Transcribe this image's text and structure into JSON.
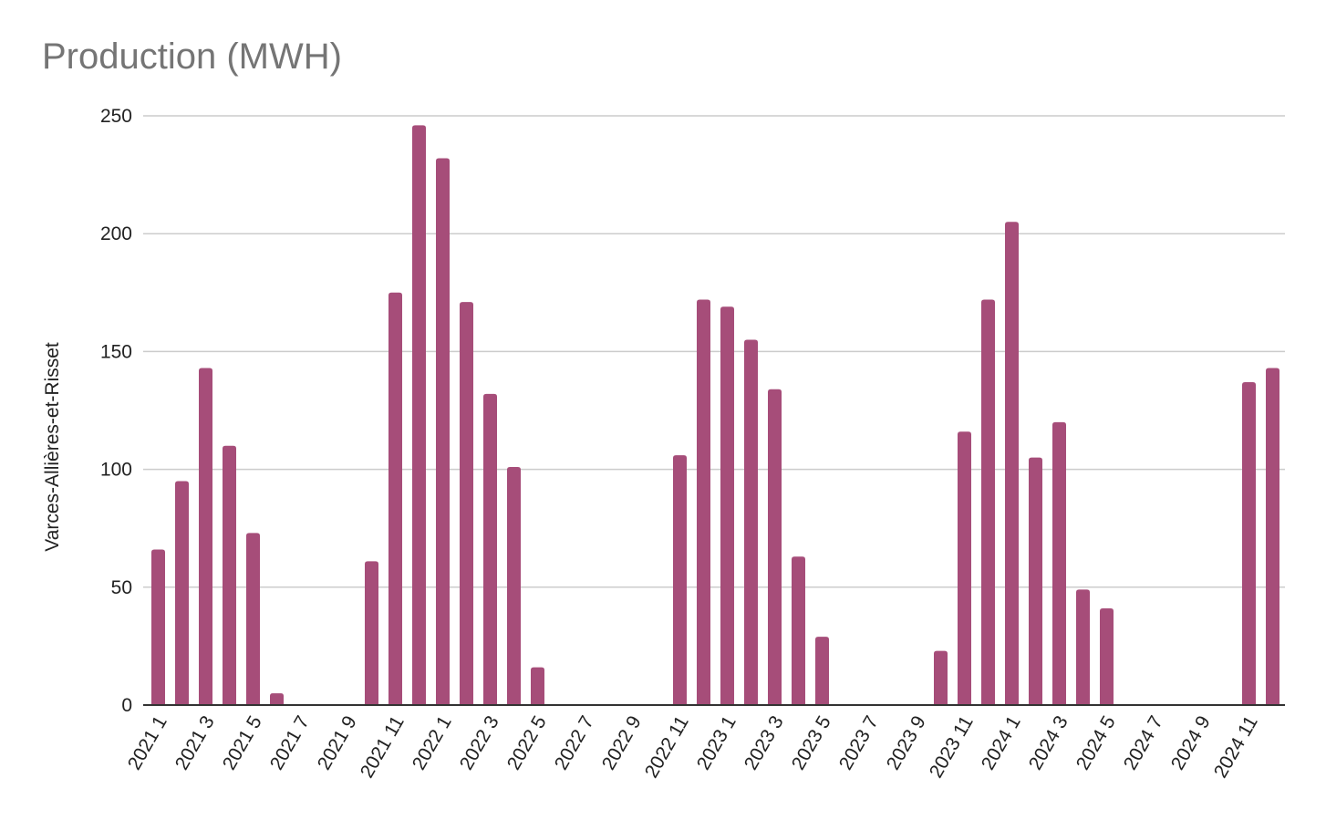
{
  "chart_data": {
    "type": "bar",
    "title": "Production (MWH)",
    "xlabel": "",
    "ylabel": "Varces-Allières-et-Risset",
    "ylim": [
      0,
      250
    ],
    "yticks": [
      0,
      50,
      100,
      150,
      200,
      250
    ],
    "grid": true,
    "legend": "none",
    "bar_color": "#a64d79",
    "categories": [
      "2021 1",
      "2021 2",
      "2021 3",
      "2021 4",
      "2021 5",
      "2021 6",
      "2021 7",
      "2021 8",
      "2021 9",
      "2021 10",
      "2021 11",
      "2021 12",
      "2022 1",
      "2022 2",
      "2022 3",
      "2022 4",
      "2022 5",
      "2022 6",
      "2022 7",
      "2022 8",
      "2022 9",
      "2022 10",
      "2022 11",
      "2022 12",
      "2023 1",
      "2023 2",
      "2023 3",
      "2023 4",
      "2023 5",
      "2023 6",
      "2023 7",
      "2023 8",
      "2023 9",
      "2023 10",
      "2023 11",
      "2023 12",
      "2024 1",
      "2024 2",
      "2024 3",
      "2024 4",
      "2024 5",
      "2024 6",
      "2024 7",
      "2024 8",
      "2024 9",
      "2024 10",
      "2024 11",
      "2024 12"
    ],
    "tick_labels": [
      "2021 1",
      "2021 3",
      "2021 5",
      "2021 7",
      "2021 9",
      "2021 11",
      "2022 1",
      "2022 3",
      "2022 5",
      "2022 7",
      "2022 9",
      "2022 11",
      "2023 1",
      "2023 3",
      "2023 5",
      "2023 7",
      "2023 9",
      "2023 11",
      "2024 1",
      "2024 3",
      "2024 5",
      "2024 7",
      "2024 9",
      "2024 11"
    ],
    "values": [
      66,
      95,
      143,
      110,
      73,
      5,
      0,
      0,
      0,
      61,
      175,
      246,
      232,
      171,
      132,
      101,
      16,
      0,
      0,
      0,
      0,
      0,
      106,
      172,
      169,
      155,
      134,
      63,
      29,
      0,
      0,
      0,
      0,
      23,
      116,
      172,
      205,
      105,
      120,
      49,
      41,
      0,
      0,
      0,
      0,
      0,
      137,
      143
    ]
  }
}
